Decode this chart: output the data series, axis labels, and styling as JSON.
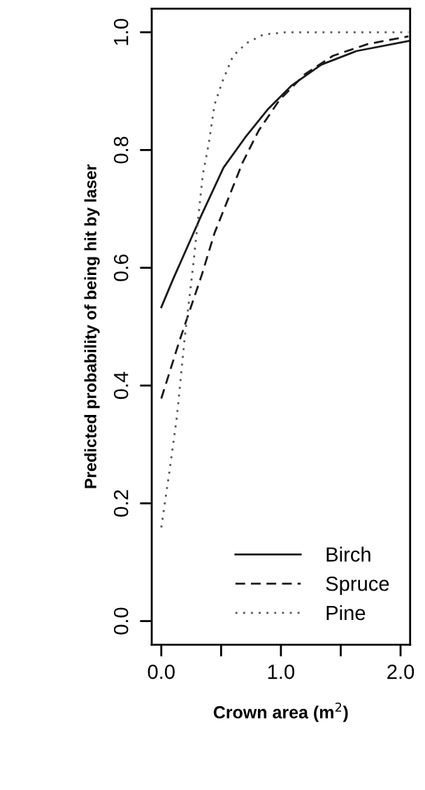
{
  "chart_data": {
    "type": "line",
    "xlabel": "Crown area (m$^{2}$)",
    "ylabel": "Predicted probability of being hit by laser",
    "xlim": [
      -0.08,
      2.08
    ],
    "ylim": [
      -0.04,
      1.04
    ],
    "xticks": [
      {
        "value": 0,
        "label": "0.0"
      },
      {
        "value": 1,
        "label": "1.0"
      },
      {
        "value": 2,
        "label": "2.0"
      }
    ],
    "yticks": [
      {
        "value": 0,
        "label": "0.0"
      },
      0.2,
      0.4,
      0.6,
      0.8,
      {
        "value": 1,
        "label": "1.0"
      }
    ],
    "grid": false,
    "legend": "bottom right",
    "marker": "none",
    "series": [
      {
        "name": "Birch",
        "color": "#1a1a1a",
        "line_style": "solid",
        "x": [
          0,
          0.095,
          0.328,
          0.52,
          0.7,
          0.89,
          1.086,
          1.338,
          1.63,
          2.066
        ],
        "values": [
          0.533,
          0.579,
          0.686,
          0.77,
          0.821,
          0.869,
          0.909,
          0.945,
          0.968,
          0.985
        ]
      },
      {
        "name": "Spruce",
        "color": "#1a1a1a",
        "line_style": "dashed",
        "x": [
          0,
          0.152,
          0.337,
          0.445,
          0.561,
          0.678,
          0.814,
          0.988,
          1.202,
          1.435,
          1.727,
          2.066
        ],
        "values": [
          0.378,
          0.476,
          0.587,
          0.659,
          0.718,
          0.778,
          0.833,
          0.885,
          0.929,
          0.96,
          0.98,
          0.993
        ]
      },
      {
        "name": "Pine",
        "color": "#555555",
        "line_style": "dotted",
        "x": [
          0,
          0.068,
          0.131,
          0.193,
          0.266,
          0.347,
          0.396,
          0.445,
          0.512,
          0.6,
          0.716,
          0.853,
          1.047,
          2.066
        ],
        "values": [
          0.159,
          0.254,
          0.348,
          0.476,
          0.603,
          0.758,
          0.81,
          0.877,
          0.917,
          0.96,
          0.982,
          0.996,
          1.0,
          1.0
        ]
      }
    ]
  }
}
